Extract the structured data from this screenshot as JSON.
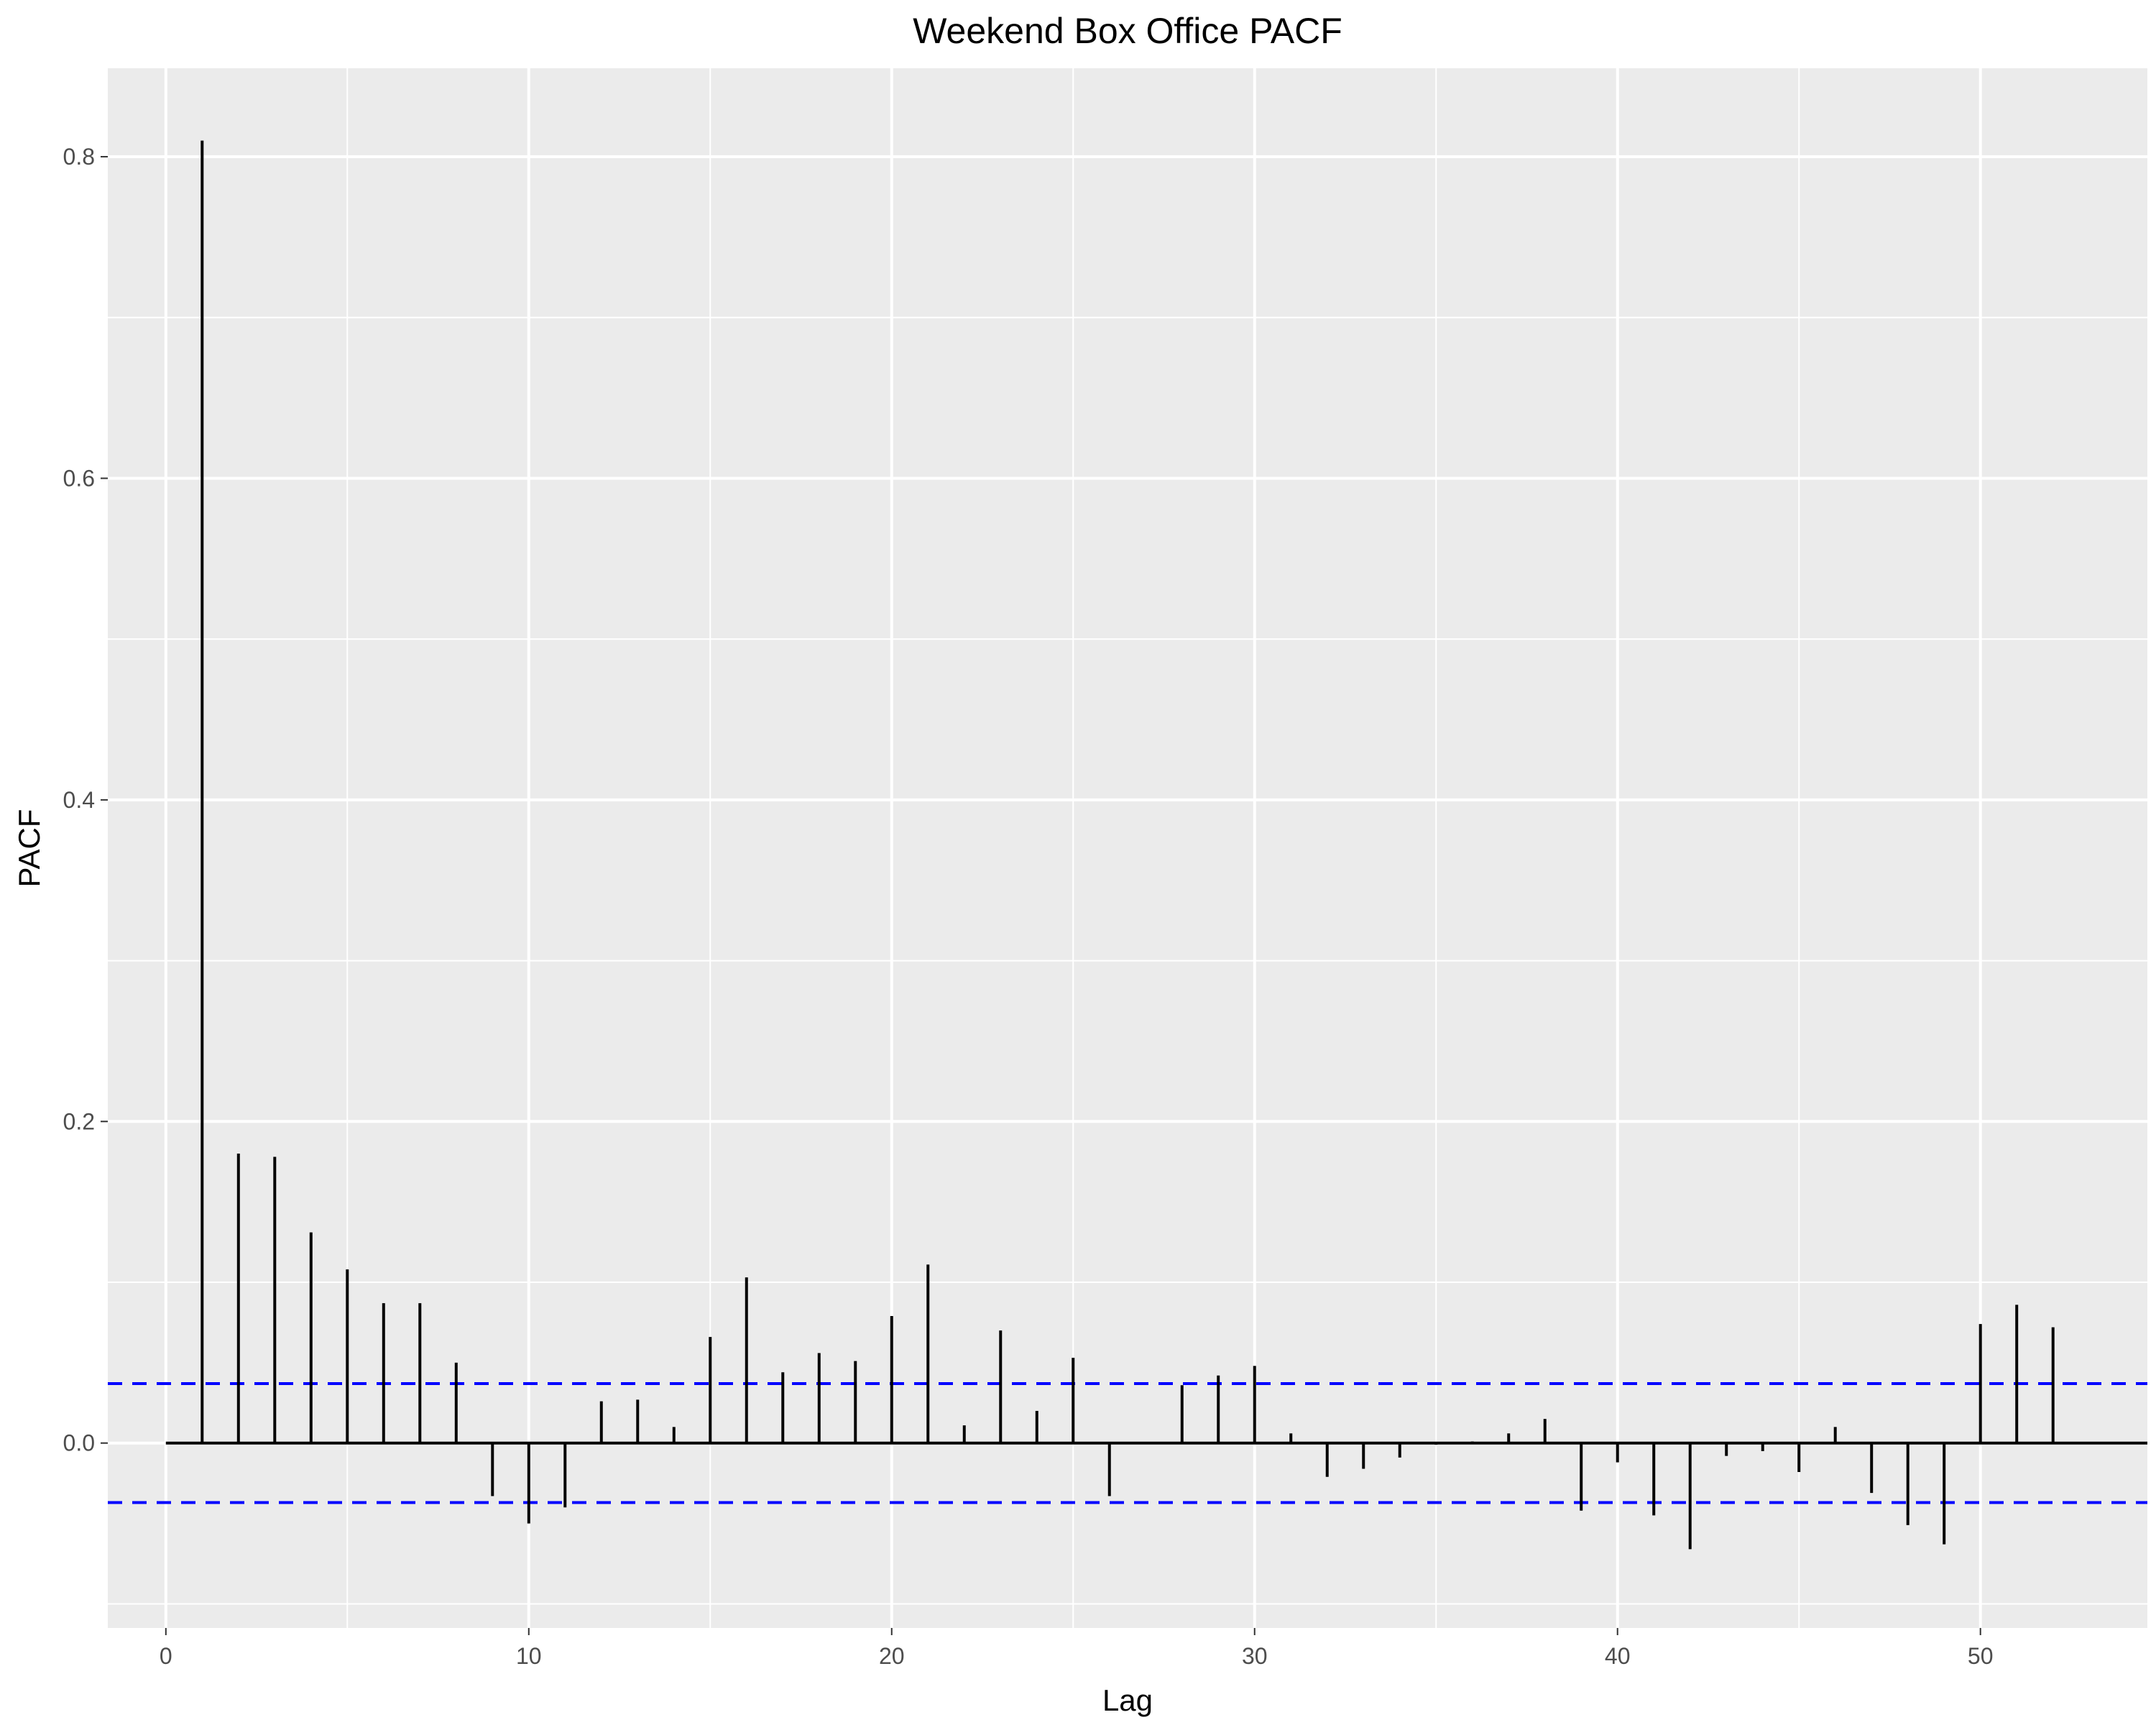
{
  "chart_data": {
    "type": "bar",
    "title": "Weekend Box Office PACF",
    "xlabel": "Lag",
    "ylabel": "PACF",
    "xlim": [
      -1.6,
      54.6
    ],
    "ylim": [
      -0.115,
      0.855
    ],
    "x_ticks": [
      0,
      10,
      20,
      30,
      40,
      50
    ],
    "x_tick_labels": [
      "0",
      "10",
      "20",
      "30",
      "40",
      "50"
    ],
    "y_ticks": [
      0.0,
      0.2,
      0.4,
      0.6,
      0.8
    ],
    "y_tick_labels": [
      "0.0",
      "0.2",
      "0.4",
      "0.6",
      "0.8"
    ],
    "x_minor": [
      5,
      15,
      25,
      35,
      45
    ],
    "y_minor": [
      -0.1,
      0.1,
      0.3,
      0.5,
      0.7
    ],
    "confidence_bound": 0.037,
    "series": [
      {
        "name": "PACF",
        "x": [
          1,
          2,
          3,
          4,
          5,
          6,
          7,
          8,
          9,
          10,
          11,
          12,
          13,
          14,
          15,
          16,
          17,
          18,
          19,
          20,
          21,
          22,
          23,
          24,
          25,
          26,
          27,
          28,
          29,
          30,
          31,
          32,
          33,
          34,
          35,
          36,
          37,
          38,
          39,
          40,
          41,
          42,
          43,
          44,
          45,
          46,
          47,
          48,
          49,
          50,
          51,
          52
        ],
        "values": [
          0.81,
          0.18,
          0.178,
          0.131,
          0.108,
          0.087,
          0.087,
          0.05,
          -0.033,
          -0.05,
          -0.04,
          0.026,
          0.027,
          0.01,
          0.066,
          0.103,
          0.044,
          0.056,
          0.051,
          0.079,
          0.111,
          0.011,
          0.07,
          0.02,
          0.053,
          -0.033,
          0.0,
          0.036,
          0.042,
          0.048,
          0.006,
          -0.021,
          -0.016,
          -0.009,
          -0.001,
          0.001,
          0.006,
          0.015,
          -0.042,
          -0.012,
          -0.045,
          -0.066,
          -0.008,
          -0.005,
          -0.018,
          0.01,
          -0.031,
          -0.051,
          -0.063,
          0.074,
          0.086,
          0.072
        ]
      }
    ],
    "colors": {
      "panel": "#ebebeb",
      "grid": "#ffffff",
      "stem": "#000000",
      "ci": "#0000ff"
    }
  }
}
